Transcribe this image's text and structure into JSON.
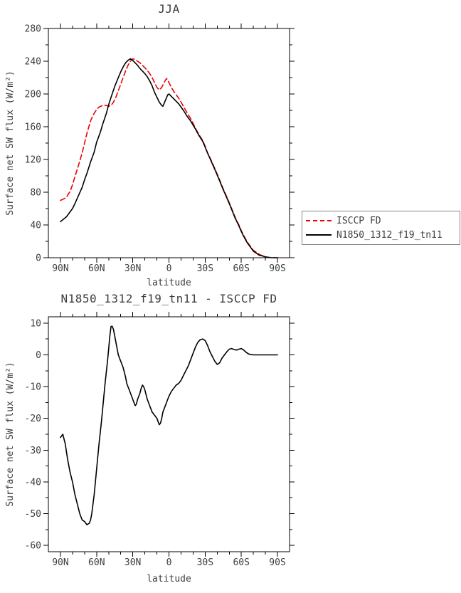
{
  "chart_data": [
    {
      "id": "jja",
      "type": "line",
      "title": "JJA",
      "xlabel": "latitude",
      "ylabel": "Surface net SW flux (W/m²)",
      "xlim": [
        100,
        -100
      ],
      "ylim": [
        0,
        280
      ],
      "grid": false,
      "xticks": {
        "values": [
          90,
          60,
          30,
          0,
          -30,
          -60,
          -90
        ],
        "labels": [
          "90N",
          "60N",
          "30N",
          "0",
          "30S",
          "60S",
          "90S"
        ],
        "minor_step": 10
      },
      "yticks": {
        "values": [
          0,
          40,
          80,
          120,
          160,
          200,
          240,
          280
        ],
        "labels": [
          "0",
          "40",
          "80",
          "120",
          "160",
          "200",
          "240",
          "280"
        ],
        "minor_step": 20
      },
      "legend": {
        "position": "outside-right",
        "entries": [
          "ISCCP FD",
          "N1850_1312_f19_tn11"
        ]
      },
      "series": [
        {
          "name": "ISCCP FD",
          "color": "#ee0000",
          "style": "dashed",
          "points": [
            [
              90,
              70
            ],
            [
              87,
              72
            ],
            [
              85,
              74
            ],
            [
              82,
              81
            ],
            [
              80,
              89
            ],
            [
              78,
              99
            ],
            [
              75,
              113
            ],
            [
              72,
              128
            ],
            [
              70,
              140
            ],
            [
              68,
              152
            ],
            [
              65,
              167
            ],
            [
              63,
              174
            ],
            [
              60,
              181
            ],
            [
              58,
              184
            ],
            [
              55,
              186
            ],
            [
              52,
              186
            ],
            [
              50,
              185
            ],
            [
              48,
              186
            ],
            [
              46,
              190
            ],
            [
              44,
              196
            ],
            [
              42,
              204
            ],
            [
              40,
              212
            ],
            [
              38,
              220
            ],
            [
              36,
              228
            ],
            [
              34,
              235
            ],
            [
              32,
              240
            ],
            [
              30,
              243
            ],
            [
              28,
              242
            ],
            [
              26,
              240
            ],
            [
              24,
              238
            ],
            [
              22,
              235
            ],
            [
              20,
              232
            ],
            [
              18,
              229
            ],
            [
              16,
              225
            ],
            [
              14,
              220
            ],
            [
              12,
              214
            ],
            [
              10,
              208
            ],
            [
              8,
              205
            ],
            [
              6,
              208
            ],
            [
              4,
              214
            ],
            [
              2,
              219
            ],
            [
              0,
              214
            ],
            [
              -2,
              208
            ],
            [
              -4,
              203
            ],
            [
              -6,
              199
            ],
            [
              -8,
              195
            ],
            [
              -10,
              190
            ],
            [
              -12,
              185
            ],
            [
              -15,
              177
            ],
            [
              -18,
              170
            ],
            [
              -20,
              164
            ],
            [
              -22,
              158
            ],
            [
              -25,
              150
            ],
            [
              -28,
              143
            ],
            [
              -30,
              136
            ],
            [
              -32,
              128
            ],
            [
              -35,
              119
            ],
            [
              -38,
              109
            ],
            [
              -40,
              102
            ],
            [
              -42,
              95
            ],
            [
              -45,
              84
            ],
            [
              -48,
              74
            ],
            [
              -50,
              67
            ],
            [
              -52,
              60
            ],
            [
              -55,
              49
            ],
            [
              -58,
              40
            ],
            [
              -60,
              33
            ],
            [
              -62,
              27
            ],
            [
              -65,
              19
            ],
            [
              -68,
              13
            ],
            [
              -70,
              9
            ],
            [
              -72,
              7
            ],
            [
              -75,
              4
            ],
            [
              -78,
              2
            ],
            [
              -80,
              1
            ],
            [
              -85,
              0
            ],
            [
              -90,
              0
            ]
          ]
        },
        {
          "name": "N1850_1312_f19_tn11",
          "color": "#000000",
          "style": "solid",
          "points": [
            [
              90,
              44
            ],
            [
              85,
              50
            ],
            [
              80,
              60
            ],
            [
              78,
              66
            ],
            [
              75,
              76
            ],
            [
              72,
              86
            ],
            [
              70,
              95
            ],
            [
              68,
              103
            ],
            [
              65,
              117
            ],
            [
              62,
              129
            ],
            [
              60,
              141
            ],
            [
              57,
              153
            ],
            [
              55,
              163
            ],
            [
              52,
              176
            ],
            [
              50,
              187
            ],
            [
              48,
              196
            ],
            [
              45,
              209
            ],
            [
              42,
              220
            ],
            [
              40,
              227
            ],
            [
              38,
              233
            ],
            [
              36,
              238
            ],
            [
              34,
              241
            ],
            [
              32,
              243
            ],
            [
              30,
              241
            ],
            [
              28,
              238
            ],
            [
              26,
              235
            ],
            [
              24,
              231
            ],
            [
              22,
              228
            ],
            [
              20,
              225
            ],
            [
              18,
              221
            ],
            [
              16,
              216
            ],
            [
              14,
              210
            ],
            [
              12,
              202
            ],
            [
              10,
              196
            ],
            [
              8,
              190
            ],
            [
              6,
              186
            ],
            [
              5,
              185
            ],
            [
              3,
              192
            ],
            [
              1,
              199
            ],
            [
              0,
              200
            ],
            [
              -2,
              197
            ],
            [
              -4,
              194
            ],
            [
              -6,
              191
            ],
            [
              -8,
              188
            ],
            [
              -10,
              184
            ],
            [
              -12,
              180
            ],
            [
              -15,
              173
            ],
            [
              -18,
              167
            ],
            [
              -20,
              162
            ],
            [
              -22,
              157
            ],
            [
              -25,
              149
            ],
            [
              -28,
              142
            ],
            [
              -30,
              135
            ],
            [
              -32,
              128
            ],
            [
              -35,
              118
            ],
            [
              -38,
              108
            ],
            [
              -40,
              101
            ],
            [
              -42,
              94
            ],
            [
              -45,
              83
            ],
            [
              -48,
              73
            ],
            [
              -50,
              66
            ],
            [
              -52,
              59
            ],
            [
              -55,
              48
            ],
            [
              -58,
              39
            ],
            [
              -60,
              32
            ],
            [
              -62,
              26
            ],
            [
              -65,
              18
            ],
            [
              -68,
              12
            ],
            [
              -70,
              8
            ],
            [
              -72,
              6
            ],
            [
              -75,
              3
            ],
            [
              -78,
              2
            ],
            [
              -80,
              1
            ],
            [
              -85,
              0
            ],
            [
              -90,
              0
            ]
          ]
        }
      ]
    },
    {
      "id": "difference",
      "type": "line",
      "title": "N1850_1312_f19_tn11 - ISCCP FD",
      "xlabel": "latitude",
      "ylabel": "Surface net SW flux (W/m²)",
      "xlim": [
        100,
        -100
      ],
      "ylim": [
        -62,
        12
      ],
      "grid": false,
      "xticks": {
        "values": [
          90,
          60,
          30,
          0,
          -30,
          -60,
          -90
        ],
        "labels": [
          "90N",
          "60N",
          "30N",
          "0",
          "30S",
          "60S",
          "90S"
        ],
        "minor_step": 10
      },
      "yticks": {
        "values": [
          -60,
          -50,
          -40,
          -30,
          -20,
          -10,
          0,
          10
        ],
        "labels": [
          "-60",
          "-50",
          "-40",
          "-30",
          "-20",
          "-10",
          "0",
          "10"
        ],
        "minor_step": 5
      },
      "series": [
        {
          "name": "N1850_1312_f19_tn11 - ISCCP FD",
          "color": "#000000",
          "style": "solid",
          "points": [
            [
              90,
              -26
            ],
            [
              88,
              -25
            ],
            [
              86,
              -28
            ],
            [
              84,
              -33
            ],
            [
              82,
              -37
            ],
            [
              80,
              -40
            ],
            [
              78,
              -44
            ],
            [
              76,
              -47
            ],
            [
              74,
              -50
            ],
            [
              72,
              -52
            ],
            [
              70,
              -52.5
            ],
            [
              68,
              -53.5
            ],
            [
              66,
              -53
            ],
            [
              65,
              -52
            ],
            [
              64,
              -50
            ],
            [
              62,
              -44
            ],
            [
              60,
              -36
            ],
            [
              58,
              -28
            ],
            [
              56,
              -21
            ],
            [
              55,
              -17
            ],
            [
              53,
              -9
            ],
            [
              51,
              -2
            ],
            [
              50,
              2
            ],
            [
              49,
              6
            ],
            [
              48,
              9
            ],
            [
              47,
              9
            ],
            [
              46,
              8
            ],
            [
              45,
              6
            ],
            [
              44,
              4
            ],
            [
              43,
              2
            ],
            [
              42,
              0
            ],
            [
              41,
              -1
            ],
            [
              40,
              -2
            ],
            [
              38,
              -4
            ],
            [
              36,
              -7
            ],
            [
              35,
              -9
            ],
            [
              34,
              -10
            ],
            [
              32,
              -12
            ],
            [
              30,
              -14
            ],
            [
              29,
              -15
            ],
            [
              28,
              -16
            ],
            [
              27,
              -15.5
            ],
            [
              26,
              -14
            ],
            [
              25,
              -13
            ],
            [
              24,
              -12
            ],
            [
              23,
              -10.5
            ],
            [
              22,
              -9.5
            ],
            [
              21,
              -10
            ],
            [
              20,
              -11
            ],
            [
              19,
              -12.5
            ],
            [
              18,
              -14
            ],
            [
              16,
              -16
            ],
            [
              15,
              -17
            ],
            [
              14,
              -18
            ],
            [
              12,
              -19
            ],
            [
              10,
              -20
            ],
            [
              9,
              -21
            ],
            [
              8,
              -22
            ],
            [
              7,
              -21.5
            ],
            [
              6,
              -20
            ],
            [
              5,
              -18
            ],
            [
              4,
              -17
            ],
            [
              3,
              -16
            ],
            [
              2,
              -15
            ],
            [
              1,
              -14
            ],
            [
              0,
              -13
            ],
            [
              -2,
              -11.5
            ],
            [
              -4,
              -10.5
            ],
            [
              -6,
              -9.5
            ],
            [
              -8,
              -9
            ],
            [
              -10,
              -8
            ],
            [
              -12,
              -6.5
            ],
            [
              -14,
              -5
            ],
            [
              -16,
              -3.5
            ],
            [
              -18,
              -1.5
            ],
            [
              -20,
              0.5
            ],
            [
              -22,
              2.5
            ],
            [
              -24,
              4
            ],
            [
              -26,
              4.8
            ],
            [
              -28,
              5
            ],
            [
              -30,
              4.5
            ],
            [
              -32,
              3
            ],
            [
              -34,
              1
            ],
            [
              -36,
              -0.5
            ],
            [
              -38,
              -2
            ],
            [
              -40,
              -3
            ],
            [
              -42,
              -2.5
            ],
            [
              -44,
              -1
            ],
            [
              -46,
              0
            ],
            [
              -48,
              1
            ],
            [
              -50,
              1.8
            ],
            [
              -52,
              2
            ],
            [
              -54,
              1.7
            ],
            [
              -56,
              1.5
            ],
            [
              -58,
              1.8
            ],
            [
              -60,
              2
            ],
            [
              -62,
              1.5
            ],
            [
              -64,
              0.8
            ],
            [
              -66,
              0.3
            ],
            [
              -68,
              0.1
            ],
            [
              -70,
              0
            ],
            [
              -75,
              0
            ],
            [
              -80,
              0
            ],
            [
              -85,
              0
            ],
            [
              -90,
              0
            ]
          ]
        }
      ]
    }
  ]
}
